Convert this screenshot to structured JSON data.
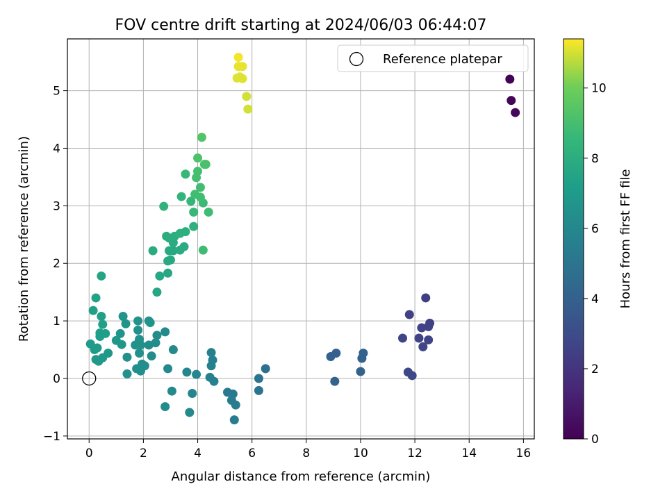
{
  "chart_data": {
    "type": "scatter",
    "title": "FOV centre drift starting at 2024/06/03 06:44:07",
    "xlabel": "Angular distance from reference (arcmin)",
    "ylabel": "Rotation from reference (arcmin)",
    "xlim": [
      -0.8,
      16.4
    ],
    "ylim": [
      -1.05,
      5.9
    ],
    "xticks": [
      0,
      2,
      4,
      6,
      8,
      10,
      12,
      14,
      16
    ],
    "yticks": [
      -1,
      0,
      1,
      2,
      3,
      4,
      5
    ],
    "grid": true,
    "legend": {
      "position": "top-right",
      "entries": [
        {
          "label": "Reference platepar",
          "marker": "open-circle"
        }
      ]
    },
    "reference_point": {
      "x": 0,
      "y": 0
    },
    "colorbar": {
      "label": "Hours from first FF file",
      "range": [
        0,
        11.4
      ],
      "ticks": [
        0,
        2,
        4,
        6,
        8,
        10
      ],
      "colormap": "viridis"
    },
    "series": [
      {
        "points": [
          {
            "x": 15.5,
            "y": 5.2,
            "c": 0.1
          },
          {
            "x": 15.55,
            "y": 4.83,
            "c": 0.2
          },
          {
            "x": 15.7,
            "y": 4.62,
            "c": 0.3
          },
          {
            "x": 11.8,
            "y": 1.11,
            "c": 2.5
          },
          {
            "x": 12.4,
            "y": 1.4,
            "c": 2.4
          },
          {
            "x": 12.55,
            "y": 0.96,
            "c": 2.5
          },
          {
            "x": 12.25,
            "y": 0.88,
            "c": 2.6
          },
          {
            "x": 12.5,
            "y": 0.9,
            "c": 2.5
          },
          {
            "x": 11.55,
            "y": 0.7,
            "c": 2.7
          },
          {
            "x": 12.15,
            "y": 0.7,
            "c": 2.6
          },
          {
            "x": 12.5,
            "y": 0.67,
            "c": 2.6
          },
          {
            "x": 12.3,
            "y": 0.55,
            "c": 2.7
          },
          {
            "x": 11.75,
            "y": 0.11,
            "c": 2.8
          },
          {
            "x": 11.9,
            "y": 0.05,
            "c": 2.8
          },
          {
            "x": 9.1,
            "y": 0.44,
            "c": 4.0
          },
          {
            "x": 8.9,
            "y": 0.38,
            "c": 4.0
          },
          {
            "x": 9.05,
            "y": -0.05,
            "c": 4.1
          },
          {
            "x": 10.1,
            "y": 0.44,
            "c": 4.0
          },
          {
            "x": 10.05,
            "y": 0.35,
            "c": 4.1
          },
          {
            "x": 10.0,
            "y": 0.12,
            "c": 4.1
          },
          {
            "x": 6.5,
            "y": 0.17,
            "c": 4.8
          },
          {
            "x": 6.25,
            "y": 0.0,
            "c": 4.9
          },
          {
            "x": 6.25,
            "y": -0.21,
            "c": 4.9
          },
          {
            "x": 5.1,
            "y": -0.24,
            "c": 5.3
          },
          {
            "x": 5.3,
            "y": -0.27,
            "c": 5.3
          },
          {
            "x": 5.25,
            "y": -0.38,
            "c": 5.4
          },
          {
            "x": 5.4,
            "y": -0.46,
            "c": 5.4
          },
          {
            "x": 5.35,
            "y": -0.72,
            "c": 5.4
          },
          {
            "x": 4.5,
            "y": 0.45,
            "c": 5.6
          },
          {
            "x": 4.55,
            "y": 0.32,
            "c": 5.6
          },
          {
            "x": 4.5,
            "y": 0.22,
            "c": 5.6
          },
          {
            "x": 4.45,
            "y": 0.02,
            "c": 5.6
          },
          {
            "x": 4.6,
            "y": -0.05,
            "c": 5.6
          },
          {
            "x": 3.6,
            "y": 0.11,
            "c": 5.9
          },
          {
            "x": 3.95,
            "y": 0.07,
            "c": 5.9
          },
          {
            "x": 3.8,
            "y": -0.26,
            "c": 5.9
          },
          {
            "x": 3.7,
            "y": -0.59,
            "c": 6.0
          },
          {
            "x": 3.1,
            "y": 0.5,
            "c": 6.1
          },
          {
            "x": 2.9,
            "y": 0.17,
            "c": 6.1
          },
          {
            "x": 3.05,
            "y": -0.22,
            "c": 6.1
          },
          {
            "x": 2.8,
            "y": -0.49,
            "c": 6.2
          },
          {
            "x": 2.8,
            "y": 0.81,
            "c": 6.2
          },
          {
            "x": 2.5,
            "y": 0.75,
            "c": 6.3
          },
          {
            "x": 2.45,
            "y": 0.62,
            "c": 6.3
          },
          {
            "x": 2.2,
            "y": 0.58,
            "c": 6.3
          },
          {
            "x": 2.3,
            "y": 0.39,
            "c": 6.3
          },
          {
            "x": 2.05,
            "y": 0.22,
            "c": 6.4
          },
          {
            "x": 1.95,
            "y": 0.25,
            "c": 6.4
          },
          {
            "x": 1.9,
            "y": 0.13,
            "c": 6.4
          },
          {
            "x": 1.75,
            "y": 0.17,
            "c": 6.4
          },
          {
            "x": 1.4,
            "y": 0.08,
            "c": 6.5
          },
          {
            "x": 1.4,
            "y": 0.37,
            "c": 6.5
          },
          {
            "x": 1.85,
            "y": 0.44,
            "c": 6.5
          },
          {
            "x": 1.7,
            "y": 0.58,
            "c": 6.5
          },
          {
            "x": 1.9,
            "y": 0.58,
            "c": 6.5
          },
          {
            "x": 1.85,
            "y": 0.68,
            "c": 6.5
          },
          {
            "x": 1.8,
            "y": 0.84,
            "c": 6.5
          },
          {
            "x": 1.8,
            "y": 1.0,
            "c": 6.6
          },
          {
            "x": 2.2,
            "y": 1.0,
            "c": 6.6
          },
          {
            "x": 2.25,
            "y": 0.97,
            "c": 6.6
          },
          {
            "x": 1.35,
            "y": 0.95,
            "c": 6.7
          },
          {
            "x": 1.25,
            "y": 1.08,
            "c": 6.7
          },
          {
            "x": 1.15,
            "y": 0.78,
            "c": 6.7
          },
          {
            "x": 1.2,
            "y": 0.59,
            "c": 6.8
          },
          {
            "x": 1.0,
            "y": 0.66,
            "c": 6.8
          },
          {
            "x": 0.7,
            "y": 0.44,
            "c": 6.8
          },
          {
            "x": 0.5,
            "y": 0.36,
            "c": 6.9
          },
          {
            "x": 0.35,
            "y": 0.3,
            "c": 6.9
          },
          {
            "x": 0.25,
            "y": 0.33,
            "c": 6.9
          },
          {
            "x": 0.2,
            "y": 0.5,
            "c": 7.0
          },
          {
            "x": 0.3,
            "y": 0.53,
            "c": 7.0
          },
          {
            "x": 0.05,
            "y": 0.6,
            "c": 7.1
          },
          {
            "x": 0.4,
            "y": 0.79,
            "c": 7.2
          },
          {
            "x": 0.4,
            "y": 0.73,
            "c": 7.2
          },
          {
            "x": 0.6,
            "y": 0.78,
            "c": 7.2
          },
          {
            "x": 0.5,
            "y": 0.94,
            "c": 7.3
          },
          {
            "x": 0.45,
            "y": 1.08,
            "c": 7.3
          },
          {
            "x": 0.15,
            "y": 1.18,
            "c": 7.3
          },
          {
            "x": 0.25,
            "y": 1.4,
            "c": 7.4
          },
          {
            "x": 0.45,
            "y": 1.78,
            "c": 7.5
          },
          {
            "x": 2.5,
            "y": 1.5,
            "c": 7.6
          },
          {
            "x": 2.6,
            "y": 1.78,
            "c": 7.7
          },
          {
            "x": 2.9,
            "y": 1.83,
            "c": 7.7
          },
          {
            "x": 2.9,
            "y": 2.04,
            "c": 7.8
          },
          {
            "x": 3.0,
            "y": 2.06,
            "c": 7.8
          },
          {
            "x": 2.95,
            "y": 2.22,
            "c": 7.8
          },
          {
            "x": 3.1,
            "y": 2.22,
            "c": 7.8
          },
          {
            "x": 3.35,
            "y": 2.23,
            "c": 7.9
          },
          {
            "x": 3.5,
            "y": 2.29,
            "c": 7.9
          },
          {
            "x": 2.35,
            "y": 2.22,
            "c": 7.9
          },
          {
            "x": 3.1,
            "y": 2.36,
            "c": 7.9
          },
          {
            "x": 2.95,
            "y": 2.44,
            "c": 8.0
          },
          {
            "x": 2.85,
            "y": 2.47,
            "c": 8.0
          },
          {
            "x": 3.15,
            "y": 2.47,
            "c": 8.0
          },
          {
            "x": 3.35,
            "y": 2.52,
            "c": 8.1
          },
          {
            "x": 3.55,
            "y": 2.55,
            "c": 8.1
          },
          {
            "x": 3.85,
            "y": 2.64,
            "c": 8.2
          },
          {
            "x": 2.75,
            "y": 2.99,
            "c": 8.3
          },
          {
            "x": 3.4,
            "y": 3.16,
            "c": 8.4
          },
          {
            "x": 3.75,
            "y": 3.08,
            "c": 8.5
          },
          {
            "x": 3.55,
            "y": 3.55,
            "c": 8.6
          },
          {
            "x": 3.85,
            "y": 2.89,
            "c": 8.6
          },
          {
            "x": 4.2,
            "y": 3.05,
            "c": 8.7
          },
          {
            "x": 4.4,
            "y": 2.89,
            "c": 8.8
          },
          {
            "x": 4.2,
            "y": 2.23,
            "c": 8.8
          },
          {
            "x": 3.9,
            "y": 3.2,
            "c": 8.9
          },
          {
            "x": 4.1,
            "y": 3.15,
            "c": 8.9
          },
          {
            "x": 4.1,
            "y": 3.32,
            "c": 8.9
          },
          {
            "x": 3.95,
            "y": 3.49,
            "c": 9.0
          },
          {
            "x": 4.0,
            "y": 3.6,
            "c": 9.0
          },
          {
            "x": 4.25,
            "y": 3.72,
            "c": 9.1
          },
          {
            "x": 4.3,
            "y": 3.72,
            "c": 9.1
          },
          {
            "x": 4.0,
            "y": 3.83,
            "c": 9.2
          },
          {
            "x": 4.15,
            "y": 4.19,
            "c": 9.3
          },
          {
            "x": 5.8,
            "y": 4.9,
            "c": 11.0
          },
          {
            "x": 5.85,
            "y": 4.68,
            "c": 11.0
          },
          {
            "x": 5.45,
            "y": 5.22,
            "c": 11.1
          },
          {
            "x": 5.55,
            "y": 5.24,
            "c": 11.1
          },
          {
            "x": 5.65,
            "y": 5.21,
            "c": 11.1
          },
          {
            "x": 5.5,
            "y": 5.42,
            "c": 11.2
          },
          {
            "x": 5.65,
            "y": 5.42,
            "c": 11.2
          },
          {
            "x": 5.5,
            "y": 5.58,
            "c": 11.3
          }
        ]
      }
    ]
  }
}
